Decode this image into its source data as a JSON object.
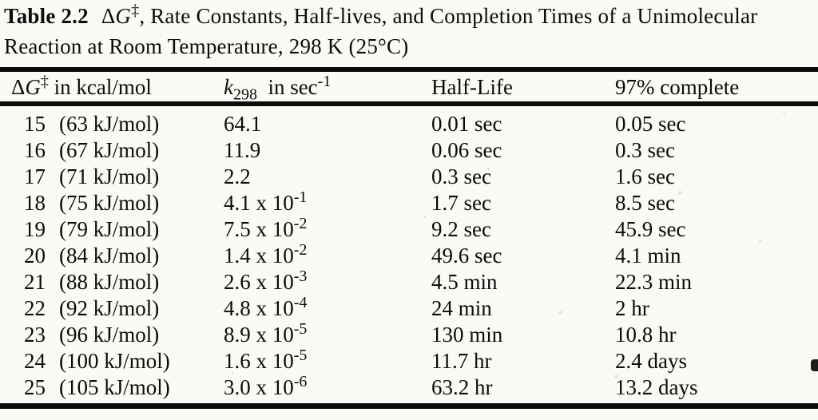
{
  "caption": {
    "label": "Table 2.2",
    "delta": "Δ",
    "g": "G",
    "dagger": "‡",
    "line1_rest": ", Rate Constants, Half-lives, and Completion Times of a Unimolecular",
    "line2": "Reaction at Room Temperature, 298 K (25°C)"
  },
  "table": {
    "headers": {
      "col1": {
        "delta": "Δ",
        "g": "G",
        "dagger": "‡",
        "suffix": " in kcal/mol"
      },
      "col2": {
        "k": "k",
        "sub": "298",
        "mid": "  in sec",
        "sup": "-1"
      },
      "col3": "Half-Life",
      "col4": "97% complete"
    },
    "rows": [
      {
        "dg": "15",
        "kj": "(63 kJ/mol)",
        "k": "64.1",
        "k_exp": "",
        "half_life": "0.01 sec",
        "complete": "0.05 sec"
      },
      {
        "dg": "16",
        "kj": "(67 kJ/mol)",
        "k": "11.9",
        "k_exp": "",
        "half_life": "0.06 sec",
        "complete": "0.3 sec"
      },
      {
        "dg": "17",
        "kj": "(71 kJ/mol)",
        "k": "2.2",
        "k_exp": "",
        "half_life": "0.3 sec",
        "complete": "1.6 sec"
      },
      {
        "dg": "18",
        "kj": "(75 kJ/mol)",
        "k": "4.1 x 10",
        "k_exp": "-1",
        "half_life": "1.7 sec",
        "complete": "8.5 sec"
      },
      {
        "dg": "19",
        "kj": "(79 kJ/mol)",
        "k": "7.5 x 10",
        "k_exp": "-2",
        "half_life": "9.2 sec",
        "complete": "45.9 sec"
      },
      {
        "dg": "20",
        "kj": "(84 kJ/mol)",
        "k": "1.4 x 10",
        "k_exp": "-2",
        "half_life": "49.6 sec",
        "complete": "4.1 min"
      },
      {
        "dg": "21",
        "kj": "(88 kJ/mol)",
        "k": "2.6 x 10",
        "k_exp": "-3",
        "half_life": "4.5 min",
        "complete": "22.3 min"
      },
      {
        "dg": "22",
        "kj": "(92 kJ/mol)",
        "k": "4.8 x 10",
        "k_exp": "-4",
        "half_life": "24 min",
        "complete": "2 hr"
      },
      {
        "dg": "23",
        "kj": "(96 kJ/mol)",
        "k": "8.9 x 10",
        "k_exp": "-5",
        "half_life": "130 min",
        "complete": "10.8 hr"
      },
      {
        "dg": "24",
        "kj": "(100 kJ/mol)",
        "k": "1.6 x 10",
        "k_exp": "-5",
        "half_life": "11.7 hr",
        "complete": "2.4 days"
      },
      {
        "dg": "25",
        "kj": "(105 kJ/mol)",
        "k": "3.0 x 10",
        "k_exp": "-6",
        "half_life": "63.2 hr",
        "complete": "13.2 days"
      }
    ]
  }
}
